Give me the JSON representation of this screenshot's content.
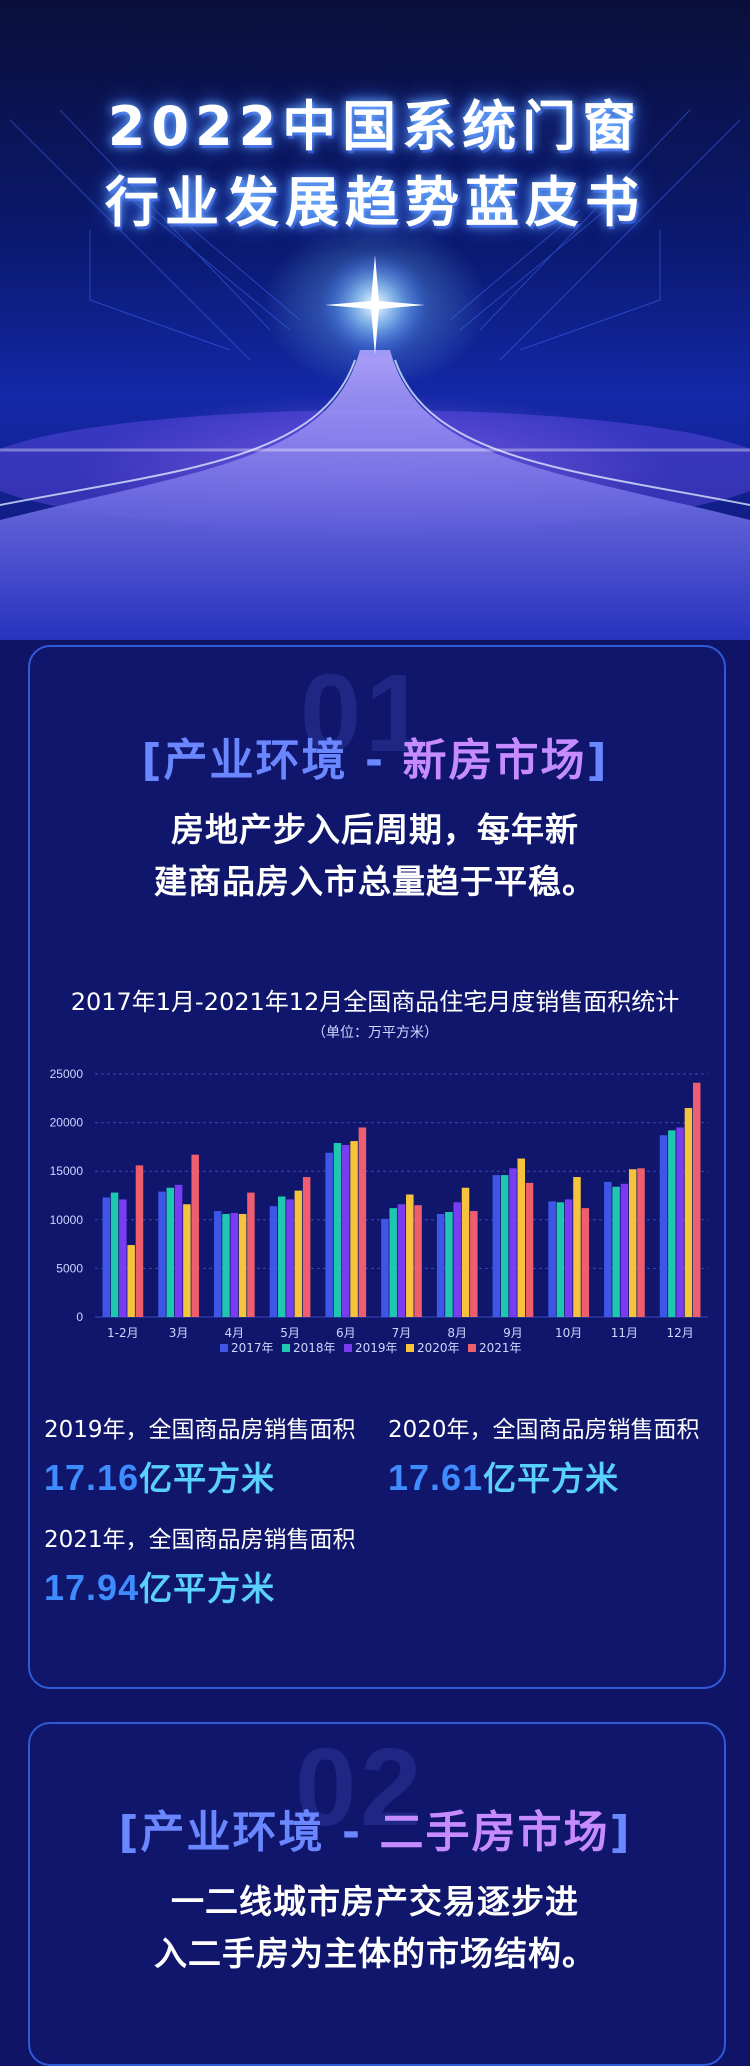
{
  "hero": {
    "title_line1": "2022中国系统门窗",
    "title_line2": "行业发展趋势蓝皮书"
  },
  "section1": {
    "number": "01",
    "title_prefix": "[产业环境 - ",
    "title_highlight": "新房市场",
    "title_suffix": "]",
    "desc_line1": "房地产步入后周期，每年新",
    "desc_line2": "建商品房入市总量趋于平稳。"
  },
  "chart_data": {
    "type": "bar",
    "title": "2017年1月-2021年12月全国商品住宅月度销售面积统计",
    "unit": "（单位：万平方米）",
    "categories": [
      "1-2月",
      "3月",
      "4月",
      "5月",
      "6月",
      "7月",
      "8月",
      "9月",
      "10月",
      "11月",
      "12月"
    ],
    "ylim": [
      0,
      25000
    ],
    "yticks": [
      "0",
      "5000",
      "10000",
      "15000",
      "20000",
      "25000"
    ],
    "grid": true,
    "legend_position": "bottom",
    "series": [
      {
        "name": "2017年",
        "color": "#3d56e6",
        "values": [
          12300,
          12900,
          10900,
          11400,
          16900,
          10100,
          10600,
          14600,
          11900,
          13900,
          18700
        ]
      },
      {
        "name": "2018年",
        "color": "#1fc6b0",
        "values": [
          12800,
          13300,
          10600,
          12400,
          17900,
          11200,
          10800,
          14600,
          11800,
          13400,
          19200
        ]
      },
      {
        "name": "2019年",
        "color": "#7a3cf2",
        "values": [
          12100,
          13600,
          10700,
          12100,
          17700,
          11600,
          11800,
          15300,
          12100,
          13700,
          19500
        ]
      },
      {
        "name": "2020年",
        "color": "#f6c43c",
        "values": [
          7400,
          11600,
          10600,
          13000,
          18100,
          12600,
          13300,
          16300,
          14400,
          15200,
          21500
        ]
      },
      {
        "name": "2021年",
        "color": "#ee5e6e",
        "values": [
          15600,
          16700,
          12800,
          14400,
          19500,
          11500,
          10900,
          13800,
          11200,
          15300,
          24100
        ]
      }
    ]
  },
  "stats": [
    {
      "label": "2019年，全国商品房销售面积",
      "number": "17.16",
      "unit": "亿平方米"
    },
    {
      "label": "2020年，全国商品房销售面积",
      "number": "17.61",
      "unit": "亿平方米"
    },
    {
      "label": "2021年，全国商品房销售面积",
      "number": "17.94",
      "unit": "亿平方米"
    }
  ],
  "section2": {
    "number": "02",
    "title_prefix": "[产业环境 - ",
    "title_highlight": "二手房市场",
    "title_suffix": "]",
    "desc_line1": "一二线城市房产交易逐步进",
    "desc_line2": "入二手房为主体的市场结构。"
  }
}
